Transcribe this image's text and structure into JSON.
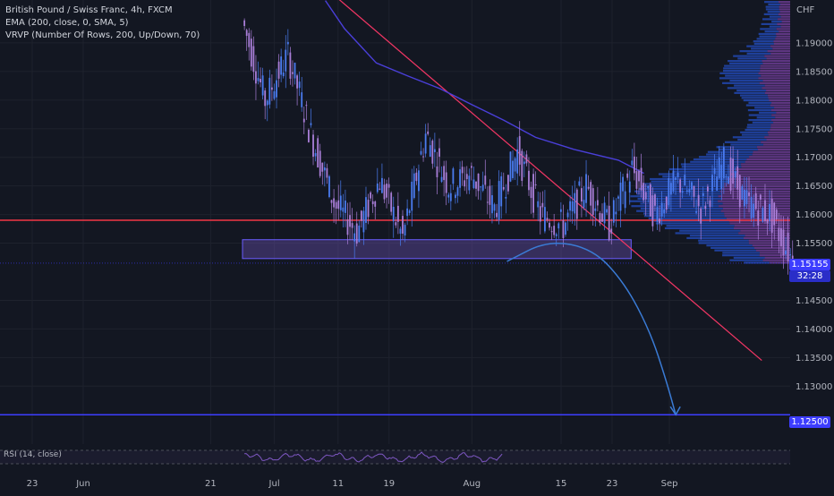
{
  "chart_data": {
    "type": "candlestick",
    "title": "British Pound / Swiss Franc, 4h, FXCM",
    "indicators": [
      "EMA (200, close, 0, SMA, 5)",
      "VRVP (Number Of Rows, 200, Up/Down, 70)"
    ],
    "currency": "CHF",
    "y_ticks": [
      "1.19000",
      "1.18500",
      "1.18000",
      "1.17500",
      "1.17000",
      "1.16500",
      "1.16000",
      "1.15500",
      "1.14500",
      "1.14000",
      "1.13500",
      "1.13000"
    ],
    "y_tick_values": [
      1.19,
      1.185,
      1.18,
      1.175,
      1.17,
      1.165,
      1.16,
      1.155,
      1.145,
      1.14,
      1.135,
      1.13
    ],
    "ylim": [
      1.1205,
      1.1975
    ],
    "x_ticks": [
      "23",
      "Jun",
      "21",
      "Jul",
      "11",
      "19",
      "Aug",
      "15",
      "23",
      "Sep"
    ],
    "x_tick_days": [
      -8,
      0,
      20,
      30,
      40,
      48,
      61,
      75,
      83,
      92
    ],
    "last_price": "1.15155",
    "countdown": "32:28",
    "target_label": "1.12500",
    "target_price": 1.125,
    "resistance_price": 1.159,
    "last_price_value": 1.1515,
    "support_zone": {
      "start_day": 25,
      "end_day": 86,
      "low": 1.1523,
      "high": 1.1556
    },
    "trendline": {
      "day1": 37,
      "price1": 1.2006,
      "day2": 106.5,
      "price2": 1.1345
    },
    "projection": [
      [
        66.5,
        1.1518
      ],
      [
        73,
        1.1555
      ],
      [
        80,
        1.154
      ],
      [
        85,
        1.148
      ],
      [
        89,
        1.1395
      ],
      [
        91.5,
        1.131
      ],
      [
        93,
        1.125
      ]
    ],
    "ema_anchors": [
      [
        38,
        1.1974
      ],
      [
        41,
        1.1925
      ],
      [
        46,
        1.1865
      ],
      [
        51,
        1.1842
      ],
      [
        56,
        1.182
      ],
      [
        61,
        1.1792
      ],
      [
        66,
        1.1765
      ],
      [
        71,
        1.1735
      ],
      [
        77,
        1.1714
      ],
      [
        84,
        1.1695
      ],
      [
        88,
        1.1672
      ]
    ],
    "ohlc_segments": [
      [
        1.194,
        1.18
      ],
      [
        1.18,
        1.188
      ],
      [
        1.188,
        1.174
      ],
      [
        1.174,
        1.162
      ],
      [
        1.162,
        1.157
      ],
      [
        1.157,
        1.166
      ],
      [
        1.166,
        1.156
      ],
      [
        1.156,
        1.174
      ],
      [
        1.174,
        1.165
      ],
      [
        1.165,
        1.167
      ],
      [
        1.167,
        1.161
      ],
      [
        1.161,
        1.171
      ],
      [
        1.171,
        1.16
      ],
      [
        1.16,
        1.158
      ],
      [
        1.158,
        1.165
      ],
      [
        1.165,
        1.158
      ],
      [
        1.158,
        1.168
      ],
      [
        1.168,
        1.16
      ],
      [
        1.16,
        1.166
      ],
      [
        1.166,
        1.161
      ],
      [
        1.161,
        1.169
      ],
      [
        1.169,
        1.162
      ],
      [
        1.162,
        1.16
      ],
      [
        1.16,
        1.152
      ]
    ],
    "candle_start_day": 25.3,
    "candle_spacing_days": 0.36,
    "bars_per_segment": 10,
    "rsi_label": "RSI (14, close)"
  }
}
